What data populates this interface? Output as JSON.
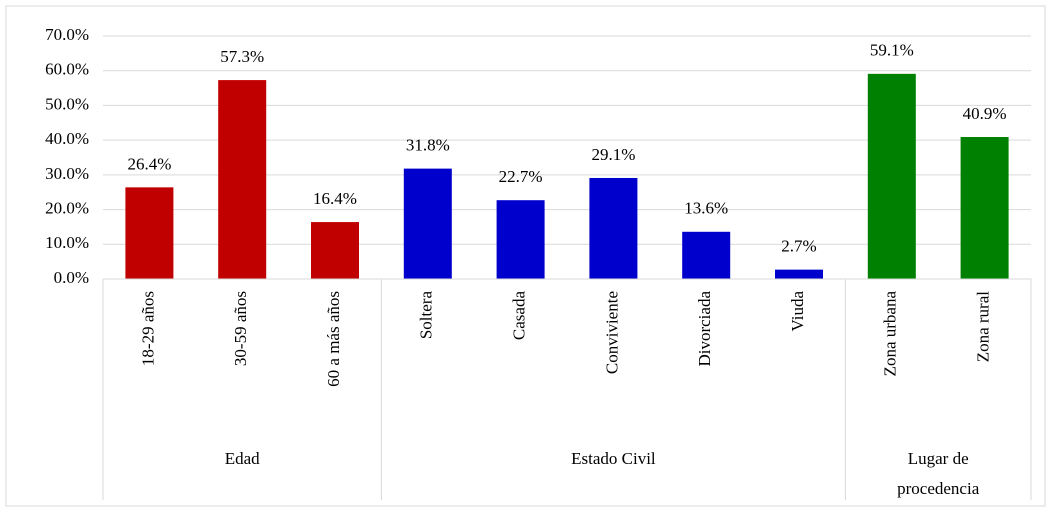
{
  "chart_data": {
    "type": "bar",
    "groups": [
      {
        "name": "Edad",
        "color": "#c00000",
        "categories": [
          "18-29 años",
          "30-59 años",
          "60 a más años"
        ],
        "values": [
          26.4,
          57.3,
          16.4
        ],
        "value_labels": [
          "26.4%",
          "57.3%",
          "16.4%"
        ]
      },
      {
        "name": "Estado Civil",
        "color": "#0000cc",
        "categories": [
          "Soltera",
          "Casada",
          "Conviviente",
          "Divorciada",
          "Viuda"
        ],
        "values": [
          31.8,
          22.7,
          29.1,
          13.6,
          2.7
        ],
        "value_labels": [
          "31.8%",
          "22.7%",
          "29.1%",
          "13.6%",
          "2.7%"
        ]
      },
      {
        "name": "Lugar de procedencia",
        "color": "#008000",
        "categories": [
          "Zona urbana",
          "Zona rural"
        ],
        "values": [
          59.1,
          40.9
        ],
        "value_labels": [
          "59.1%",
          "40.9%"
        ]
      }
    ],
    "ylim": [
      0,
      70
    ],
    "yticks": [
      {
        "value": 0,
        "label": "0.0%"
      },
      {
        "value": 10,
        "label": "10.0%"
      },
      {
        "value": 20,
        "label": "20.0%"
      },
      {
        "value": 30,
        "label": "30.0%"
      },
      {
        "value": 40,
        "label": "40.0%"
      },
      {
        "value": 50,
        "label": "50.0%"
      },
      {
        "value": 60,
        "label": "60.0%"
      },
      {
        "value": 70,
        "label": "70.0%"
      }
    ],
    "grid": true
  }
}
